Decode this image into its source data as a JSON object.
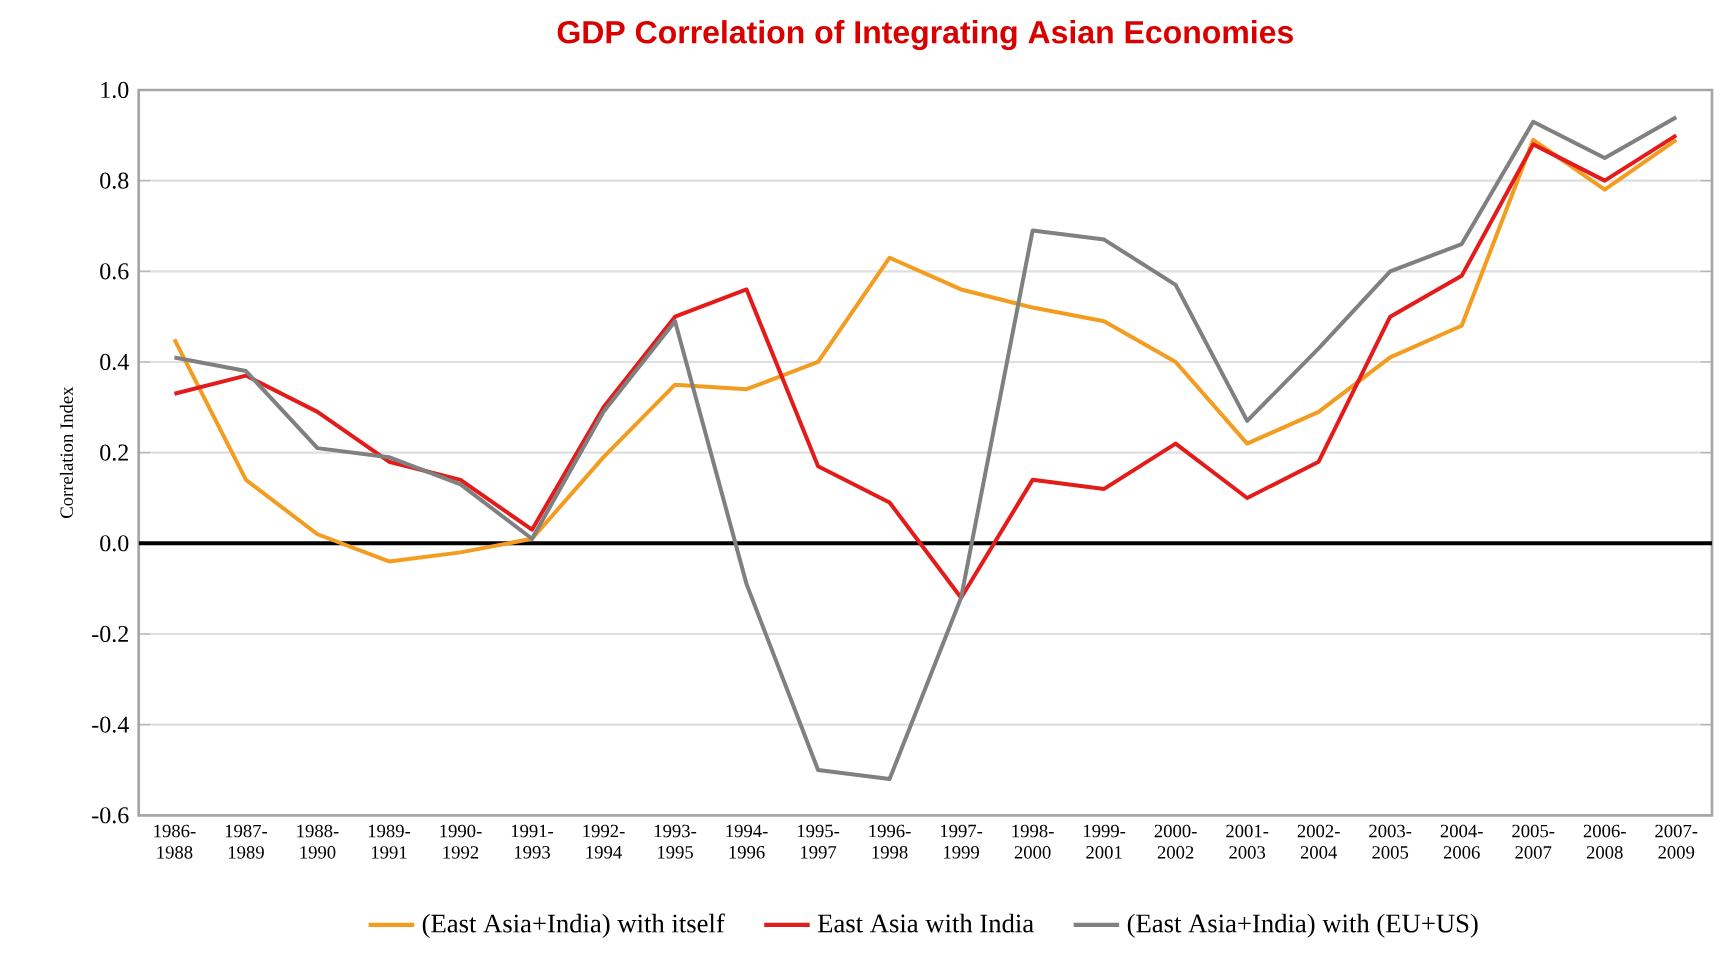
{
  "chart_data": {
    "type": "line",
    "title": "GDP Correlation of Integrating Asian Economies",
    "ylabel": "Correlation Index",
    "categories": [
      "1986-1988",
      "1987-1989",
      "1988-1990",
      "1989-1991",
      "1990-1992",
      "1991-1993",
      "1992-1994",
      "1993-1995",
      "1994-1996",
      "1995-1997",
      "1996-1998",
      "1997-1999",
      "1998-2000",
      "1999-2001",
      "2000-2002",
      "2001-2003",
      "2002-2004",
      "2003-2005",
      "2004-2006",
      "2005-2007",
      "2006-2008",
      "2007-2009"
    ],
    "series": [
      {
        "name": "(East Asia+India) with itself",
        "color": "#f39c1f",
        "values": [
          0.45,
          0.14,
          0.02,
          -0.04,
          -0.02,
          0.01,
          0.19,
          0.35,
          0.34,
          0.4,
          0.63,
          0.56,
          0.52,
          0.49,
          0.4,
          0.22,
          0.29,
          0.41,
          0.48,
          0.89,
          0.78,
          0.89
        ]
      },
      {
        "name": "East Asia with India",
        "color": "#e31b1b",
        "values": [
          0.33,
          0.37,
          0.29,
          0.18,
          0.14,
          0.03,
          0.3,
          0.5,
          0.56,
          0.17,
          0.09,
          -0.12,
          0.14,
          0.12,
          0.22,
          0.1,
          0.18,
          0.5,
          0.59,
          0.88,
          0.8,
          0.9
        ]
      },
      {
        "name": "(East Asia+India) with (EU+US)",
        "color": "#808080",
        "values": [
          0.41,
          0.38,
          0.21,
          0.19,
          0.13,
          0.01,
          0.29,
          0.49,
          -0.09,
          -0.5,
          -0.52,
          -0.12,
          0.69,
          0.67,
          0.57,
          0.27,
          0.43,
          0.6,
          0.66,
          0.93,
          0.85,
          0.94
        ]
      }
    ],
    "ylim": [
      -0.6,
      1.0
    ],
    "yticks": [
      {
        "value": -0.6,
        "label": "-0.6"
      },
      {
        "value": -0.4,
        "label": "-0.4"
      },
      {
        "value": -0.2,
        "label": "-0.2"
      },
      {
        "value": 0,
        "label": "0.0"
      },
      {
        "value": 0.2,
        "label": "0.2"
      },
      {
        "value": 0.4,
        "label": "0.4"
      },
      {
        "value": 0.6,
        "label": "0.6"
      },
      {
        "value": 0.8,
        "label": "0.8"
      },
      {
        "value": 1.0,
        "label": "1.0"
      }
    ],
    "ref_lines": [
      {
        "axis": "y",
        "value": 0,
        "color": "#000000"
      }
    ],
    "grid": "y",
    "legend": "bottom",
    "marker": "none",
    "line_style": "solid"
  }
}
